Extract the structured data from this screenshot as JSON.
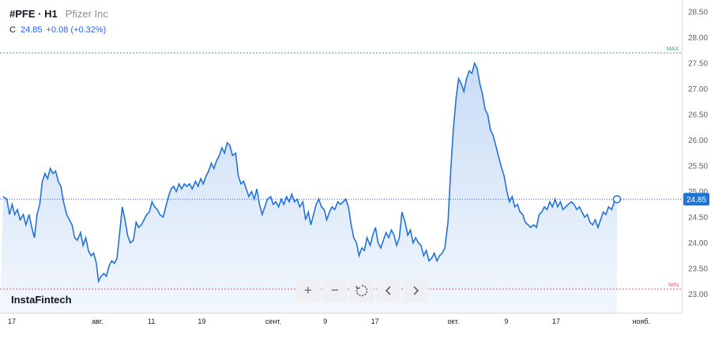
{
  "header": {
    "symbol": "#PFE · H1",
    "company": "Pfizer Inc",
    "close_label": "C",
    "close_value": "24.85",
    "change": "+0.08 (+0.32%)"
  },
  "brand": "InstaFintech",
  "toolbar": {
    "zoom_in": "+",
    "zoom_out": "−",
    "reset": "reset",
    "back": "‹",
    "forward": "›"
  },
  "colors": {
    "line": "#2273d8",
    "fill_top": "#c9dcf6",
    "fill_bottom": "#f2f7fd",
    "max_line": "#3aa07a",
    "min_line": "#e05a6a",
    "current_line": "#2962ff"
  },
  "chart_data": {
    "type": "area",
    "title": "",
    "xlabel": "",
    "ylabel": "",
    "ylim": [
      22.75,
      28.75
    ],
    "y_ticks": [
      "28.50",
      "28.00",
      "27.50",
      "27.00",
      "26.50",
      "26.00",
      "25.50",
      "25.00",
      "24.50",
      "24.00",
      "23.50",
      "23.00"
    ],
    "x_ticks": [
      {
        "label": "17",
        "x": 0
      },
      {
        "label": "авг.",
        "x": 17.8
      },
      {
        "label": "11",
        "x": 28.0
      },
      {
        "label": "19",
        "x": 37.5
      },
      {
        "label": "сент.",
        "x": 51.0
      },
      {
        "label": "9",
        "x": 60.8
      },
      {
        "label": "17",
        "x": 70.2
      },
      {
        "label": "окт.",
        "x": 85.0
      },
      {
        "label": "9",
        "x": 95.0
      },
      {
        "label": "17",
        "x": 104.4
      },
      {
        "label": "нояб.",
        "x": 120.5
      }
    ],
    "max_label": "MAX",
    "max_value": 27.7,
    "min_label": "MIN",
    "min_value": 23.1,
    "current_value": 24.85,
    "current_label": "24.85",
    "x_max": 125,
    "series": [
      {
        "points": [
          [
            0,
            24.9
          ],
          [
            0.7,
            24.85
          ],
          [
            1.2,
            24.55
          ],
          [
            1.7,
            24.75
          ],
          [
            2.2,
            24.55
          ],
          [
            2.7,
            24.65
          ],
          [
            3.2,
            24.45
          ],
          [
            3.8,
            24.55
          ],
          [
            4.3,
            24.35
          ],
          [
            4.9,
            24.55
          ],
          [
            5.4,
            24.3
          ],
          [
            5.9,
            24.1
          ],
          [
            6.4,
            24.55
          ],
          [
            6.9,
            24.75
          ],
          [
            7.4,
            25.2
          ],
          [
            7.9,
            25.35
          ],
          [
            8.4,
            25.25
          ],
          [
            8.9,
            25.45
          ],
          [
            9.4,
            25.35
          ],
          [
            9.9,
            25.4
          ],
          [
            10.4,
            25.2
          ],
          [
            10.9,
            25.1
          ],
          [
            11.4,
            24.8
          ],
          [
            12.0,
            24.55
          ],
          [
            12.5,
            24.45
          ],
          [
            13.0,
            24.35
          ],
          [
            13.5,
            24.1
          ],
          [
            14.0,
            24.05
          ],
          [
            14.6,
            24.2
          ],
          [
            15.1,
            23.95
          ],
          [
            15.6,
            24.1
          ],
          [
            16.1,
            23.85
          ],
          [
            16.6,
            23.75
          ],
          [
            17.1,
            23.8
          ],
          [
            17.6,
            23.6
          ],
          [
            18.0,
            23.25
          ],
          [
            18.5,
            23.35
          ],
          [
            19.0,
            23.4
          ],
          [
            19.5,
            23.35
          ],
          [
            20.0,
            23.55
          ],
          [
            20.5,
            23.65
          ],
          [
            21.0,
            23.6
          ],
          [
            21.5,
            23.7
          ],
          [
            22.0,
            24.2
          ],
          [
            22.5,
            24.7
          ],
          [
            23.0,
            24.45
          ],
          [
            23.5,
            24.15
          ],
          [
            24.0,
            24.0
          ],
          [
            24.6,
            24.05
          ],
          [
            25.1,
            24.4
          ],
          [
            25.6,
            24.3
          ],
          [
            26.1,
            24.35
          ],
          [
            26.6,
            24.45
          ],
          [
            27.1,
            24.55
          ],
          [
            27.6,
            24.6
          ],
          [
            28.1,
            24.8
          ],
          [
            28.6,
            24.7
          ],
          [
            29.1,
            24.65
          ],
          [
            29.6,
            24.55
          ],
          [
            30.2,
            24.5
          ],
          [
            30.7,
            24.7
          ],
          [
            31.2,
            24.9
          ],
          [
            31.7,
            25.05
          ],
          [
            32.2,
            25.1
          ],
          [
            32.7,
            25.0
          ],
          [
            33.2,
            25.15
          ],
          [
            33.7,
            25.05
          ],
          [
            34.2,
            25.15
          ],
          [
            34.7,
            25.1
          ],
          [
            35.2,
            25.15
          ],
          [
            35.7,
            25.05
          ],
          [
            36.3,
            25.2
          ],
          [
            36.8,
            25.1
          ],
          [
            37.3,
            25.25
          ],
          [
            37.8,
            25.15
          ],
          [
            38.3,
            25.3
          ],
          [
            38.8,
            25.4
          ],
          [
            39.3,
            25.55
          ],
          [
            39.8,
            25.45
          ],
          [
            40.3,
            25.6
          ],
          [
            40.8,
            25.7
          ],
          [
            41.3,
            25.85
          ],
          [
            41.8,
            25.75
          ],
          [
            42.3,
            25.95
          ],
          [
            42.8,
            25.9
          ],
          [
            43.3,
            25.7
          ],
          [
            43.9,
            25.75
          ],
          [
            44.4,
            25.3
          ],
          [
            44.9,
            25.15
          ],
          [
            45.4,
            25.2
          ],
          [
            45.9,
            25.05
          ],
          [
            46.4,
            24.9
          ],
          [
            46.9,
            25.0
          ],
          [
            47.4,
            24.85
          ],
          [
            47.9,
            25.05
          ],
          [
            48.4,
            24.75
          ],
          [
            48.9,
            24.55
          ],
          [
            49.4,
            24.7
          ],
          [
            49.9,
            24.85
          ],
          [
            50.5,
            24.9
          ],
          [
            51.0,
            24.75
          ],
          [
            51.5,
            24.8
          ],
          [
            52.0,
            24.7
          ],
          [
            52.5,
            24.85
          ],
          [
            53.0,
            24.75
          ],
          [
            53.5,
            24.9
          ],
          [
            54.0,
            24.8
          ],
          [
            54.5,
            24.95
          ],
          [
            55.0,
            24.8
          ],
          [
            55.5,
            24.85
          ],
          [
            56.0,
            24.7
          ],
          [
            56.6,
            24.8
          ],
          [
            57.1,
            24.45
          ],
          [
            57.6,
            24.6
          ],
          [
            58.1,
            24.35
          ],
          [
            58.6,
            24.55
          ],
          [
            59.1,
            24.75
          ],
          [
            59.6,
            24.85
          ],
          [
            60.1,
            24.7
          ],
          [
            60.6,
            24.65
          ],
          [
            61.1,
            24.45
          ],
          [
            61.6,
            24.6
          ],
          [
            62.1,
            24.7
          ],
          [
            62.6,
            24.65
          ],
          [
            63.2,
            24.8
          ],
          [
            63.7,
            24.75
          ],
          [
            64.2,
            24.8
          ],
          [
            64.7,
            24.85
          ],
          [
            65.2,
            24.7
          ],
          [
            65.7,
            24.35
          ],
          [
            66.2,
            24.1
          ],
          [
            66.7,
            24.0
          ],
          [
            67.2,
            23.75
          ],
          [
            67.7,
            23.9
          ],
          [
            68.2,
            23.85
          ],
          [
            68.7,
            24.1
          ],
          [
            69.3,
            23.95
          ],
          [
            69.8,
            24.15
          ],
          [
            70.3,
            24.3
          ],
          [
            70.8,
            24.0
          ],
          [
            71.3,
            23.9
          ],
          [
            71.8,
            24.05
          ],
          [
            72.3,
            24.2
          ],
          [
            72.8,
            24.1
          ],
          [
            73.3,
            24.25
          ],
          [
            73.8,
            24.15
          ],
          [
            74.3,
            23.95
          ],
          [
            74.8,
            24.1
          ],
          [
            75.3,
            24.6
          ],
          [
            75.9,
            24.4
          ],
          [
            76.4,
            24.15
          ],
          [
            76.9,
            24.25
          ],
          [
            77.4,
            24.0
          ],
          [
            77.9,
            24.1
          ],
          [
            78.4,
            24.0
          ],
          [
            78.9,
            23.95
          ],
          [
            79.4,
            23.75
          ],
          [
            79.9,
            23.85
          ],
          [
            80.4,
            23.65
          ],
          [
            80.9,
            23.7
          ],
          [
            81.4,
            23.8
          ],
          [
            81.9,
            23.65
          ],
          [
            82.4,
            23.75
          ],
          [
            82.9,
            23.8
          ],
          [
            83.4,
            23.9
          ],
          [
            84.0,
            24.4
          ],
          [
            84.5,
            25.4
          ],
          [
            85.0,
            26.2
          ],
          [
            85.5,
            26.8
          ],
          [
            86.0,
            27.2
          ],
          [
            86.5,
            27.1
          ],
          [
            87.0,
            26.95
          ],
          [
            87.5,
            27.2
          ],
          [
            88.0,
            27.35
          ],
          [
            88.5,
            27.3
          ],
          [
            89.0,
            27.5
          ],
          [
            89.5,
            27.4
          ],
          [
            90.0,
            27.1
          ],
          [
            90.5,
            26.9
          ],
          [
            91.0,
            26.6
          ],
          [
            91.5,
            26.5
          ],
          [
            92.0,
            26.2
          ],
          [
            92.5,
            26.1
          ],
          [
            93.0,
            25.9
          ],
          [
            93.5,
            25.7
          ],
          [
            94.0,
            25.5
          ],
          [
            94.6,
            25.3
          ],
          [
            95.1,
            25.0
          ],
          [
            95.6,
            24.8
          ],
          [
            96.1,
            24.9
          ],
          [
            96.6,
            24.7
          ],
          [
            97.1,
            24.75
          ],
          [
            97.6,
            24.6
          ],
          [
            98.1,
            24.55
          ],
          [
            98.6,
            24.4
          ],
          [
            99.1,
            24.35
          ],
          [
            99.6,
            24.3
          ],
          [
            100.2,
            24.35
          ],
          [
            100.7,
            24.3
          ],
          [
            101.2,
            24.55
          ],
          [
            101.7,
            24.6
          ],
          [
            102.2,
            24.7
          ],
          [
            102.7,
            24.65
          ],
          [
            103.2,
            24.8
          ],
          [
            103.7,
            24.7
          ],
          [
            104.2,
            24.85
          ],
          [
            104.7,
            24.7
          ],
          [
            105.2,
            24.8
          ],
          [
            105.7,
            24.65
          ],
          [
            106.2,
            24.7
          ],
          [
            106.7,
            24.75
          ],
          [
            107.3,
            24.8
          ],
          [
            107.8,
            24.75
          ],
          [
            108.3,
            24.65
          ],
          [
            108.8,
            24.7
          ],
          [
            109.3,
            24.6
          ],
          [
            109.8,
            24.5
          ],
          [
            110.3,
            24.55
          ],
          [
            110.8,
            24.4
          ],
          [
            111.3,
            24.35
          ],
          [
            111.8,
            24.45
          ],
          [
            112.3,
            24.3
          ],
          [
            112.8,
            24.45
          ],
          [
            113.3,
            24.6
          ],
          [
            113.8,
            24.55
          ],
          [
            114.3,
            24.7
          ],
          [
            114.9,
            24.65
          ],
          [
            115.4,
            24.8
          ],
          [
            115.9,
            24.85
          ]
        ]
      }
    ]
  }
}
